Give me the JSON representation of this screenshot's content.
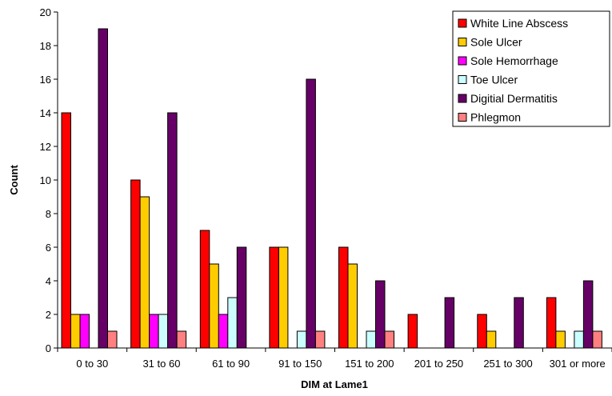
{
  "chart_data": {
    "type": "bar",
    "title": "",
    "xlabel": "DIM at Lame1",
    "ylabel": "Count",
    "ylim": [
      0,
      20
    ],
    "yticks": [
      0,
      2,
      4,
      6,
      8,
      10,
      12,
      14,
      16,
      18,
      20
    ],
    "grid": false,
    "legend_position": "top-right",
    "categories": [
      "0 to 30",
      "31 to 60",
      "61 to 90",
      "91 to 150",
      "151 to 200",
      "201 to 250",
      "251 to 300",
      "301 or more"
    ],
    "series": [
      {
        "name": "White Line Abscess",
        "color": "#ff0000",
        "values": [
          14,
          10,
          7,
          6,
          6,
          2,
          2,
          3
        ]
      },
      {
        "name": "Sole Ulcer",
        "color": "#ffcc00",
        "values": [
          2,
          9,
          5,
          6,
          5,
          0,
          1,
          1
        ]
      },
      {
        "name": "Sole Hemorrhage",
        "color": "#ff00ff",
        "values": [
          2,
          2,
          2,
          0,
          0,
          0,
          0,
          0
        ]
      },
      {
        "name": "Toe Ulcer",
        "color": "#ccffff",
        "values": [
          0,
          2,
          3,
          1,
          1,
          0,
          0,
          1
        ]
      },
      {
        "name": "Digitial Dermatitis",
        "color": "#660066",
        "values": [
          19,
          14,
          6,
          16,
          4,
          3,
          3,
          4
        ]
      },
      {
        "name": "Phlegmon",
        "color": "#ff8080",
        "values": [
          1,
          1,
          0,
          1,
          1,
          0,
          0,
          1
        ]
      }
    ]
  }
}
